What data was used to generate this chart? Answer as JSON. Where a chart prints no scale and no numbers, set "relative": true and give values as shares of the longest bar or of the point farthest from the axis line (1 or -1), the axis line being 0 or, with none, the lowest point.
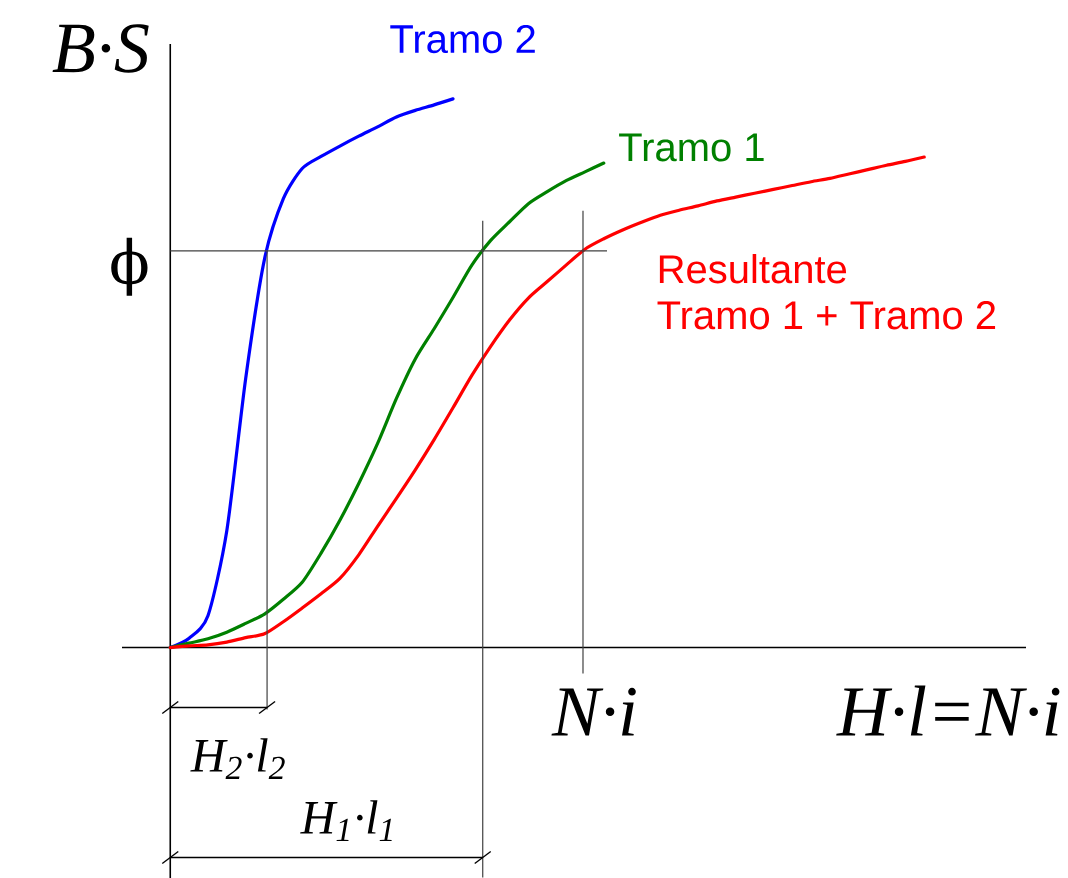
{
  "chart_data": {
    "type": "line",
    "relative": true,
    "xlabel": "H·l=N·i",
    "ylabel": "B·S",
    "categories": [
      null,
      null,
      null,
      null,
      null,
      null,
      null,
      null,
      null,
      null,
      null,
      null,
      null,
      null,
      null,
      null,
      null,
      null,
      null,
      null,
      null,
      null,
      null,
      null,
      null,
      null,
      null,
      null,
      null,
      null,
      null,
      null,
      null,
      null,
      null,
      null,
      null,
      null,
      null,
      null,
      null
    ],
    "series": [
      {
        "name": "Tramo 2",
        "color": "#0000ff",
        "values": [
          0,
          0.017,
          0.058,
          0.213,
          0.49,
          0.708,
          0.818,
          0.873,
          0.895,
          0.914,
          0.932,
          0.949,
          0.967,
          0.979,
          0.989,
          1.0,
          null,
          null,
          null,
          null,
          null,
          null,
          null,
          null,
          null,
          null,
          null,
          null,
          null,
          null,
          null,
          null,
          null,
          null,
          null,
          null,
          null,
          null,
          null,
          null,
          null
        ]
      },
      {
        "name": "Tramo 1",
        "color": "#008000",
        "values": [
          0,
          0.008,
          0.016,
          0.028,
          0.044,
          0.061,
          0.088,
          0.119,
          0.172,
          0.232,
          0.299,
          0.372,
          0.454,
          0.526,
          0.581,
          0.638,
          0.697,
          0.742,
          0.776,
          0.809,
          0.831,
          0.851,
          0.867,
          0.883,
          null,
          null,
          null,
          null,
          null,
          null,
          null,
          null,
          null,
          null,
          null,
          null,
          null,
          null,
          null,
          null,
          null
        ]
      },
      {
        "name": "Resultante",
        "color": "#ff0000",
        "values": [
          0,
          0.003,
          0.005,
          0.01,
          0.018,
          0.025,
          0.047,
          0.072,
          0.098,
          0.126,
          0.169,
          0.221,
          0.272,
          0.324,
          0.379,
          0.437,
          0.496,
          0.549,
          0.597,
          0.637,
          0.667,
          0.697,
          0.726,
          0.745,
          0.761,
          0.775,
          0.788,
          0.797,
          0.805,
          0.814,
          0.821,
          0.828,
          0.835,
          0.842,
          0.849,
          0.855,
          0.863,
          0.871,
          0.879,
          0.886,
          0.894
        ]
      }
    ],
    "ref_lines": [
      {
        "axis": "y",
        "value": 0.723,
        "label": "ϕ",
        "color": "#404040"
      }
    ],
    "annotations": [
      "H$_{2}$·l$_{2}$",
      "H$_{1}$·l$_{1}$",
      "N·i",
      "Tramo 1 + Tramo 2"
    ],
    "legend": false,
    "marker": "none",
    "line_style": "solid"
  }
}
